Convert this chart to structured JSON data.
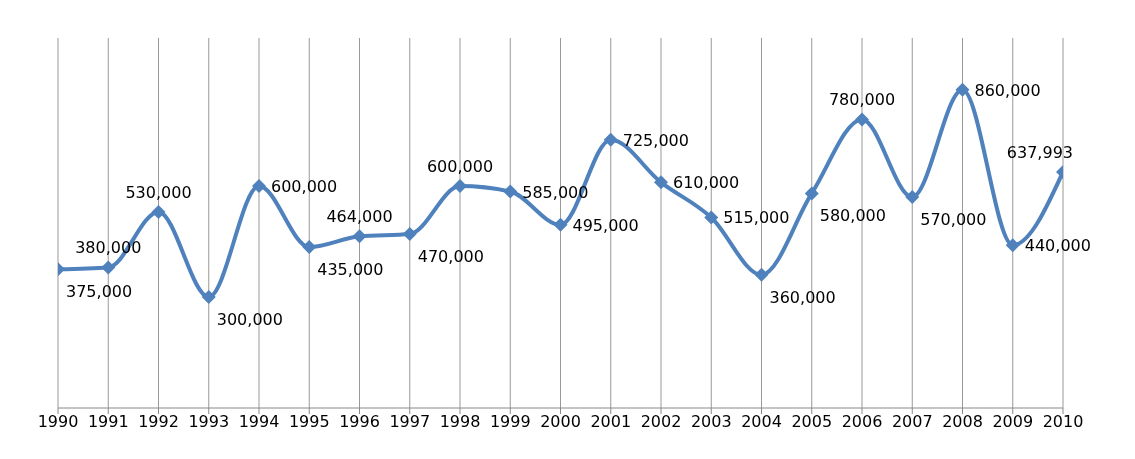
{
  "chart_data": {
    "type": "line",
    "categories": [
      "1990",
      "1991",
      "1992",
      "1993",
      "1994",
      "1995",
      "1996",
      "1997",
      "1998",
      "1999",
      "2000",
      "2001",
      "2002",
      "2003",
      "2004",
      "2005",
      "2006",
      "2007",
      "2008",
      "2009",
      "2010"
    ],
    "series": [
      {
        "color": "#4f81bd",
        "values": [
          375000,
          380000,
          530000,
          300000,
          600000,
          435000,
          464000,
          470000,
          600000,
          585000,
          495000,
          725000,
          610000,
          515000,
          360000,
          580000,
          780000,
          570000,
          860000,
          440000,
          637993
        ],
        "value_labels": [
          "375,000",
          "380,000",
          "530,000",
          "300,000",
          "600,000",
          "435,000",
          "464,000",
          "470,000",
          "600,000",
          "585,000",
          "495,000",
          "725,000",
          "610,000",
          "515,000",
          "360,000",
          "580,000",
          "780,000",
          "570,000",
          "860,000",
          "440,000",
          "637,993"
        ]
      }
    ],
    "ylim": [
      0,
      1000000
    ],
    "grid": "x",
    "legend": false,
    "marker": "diamond",
    "line_style": "solid"
  }
}
